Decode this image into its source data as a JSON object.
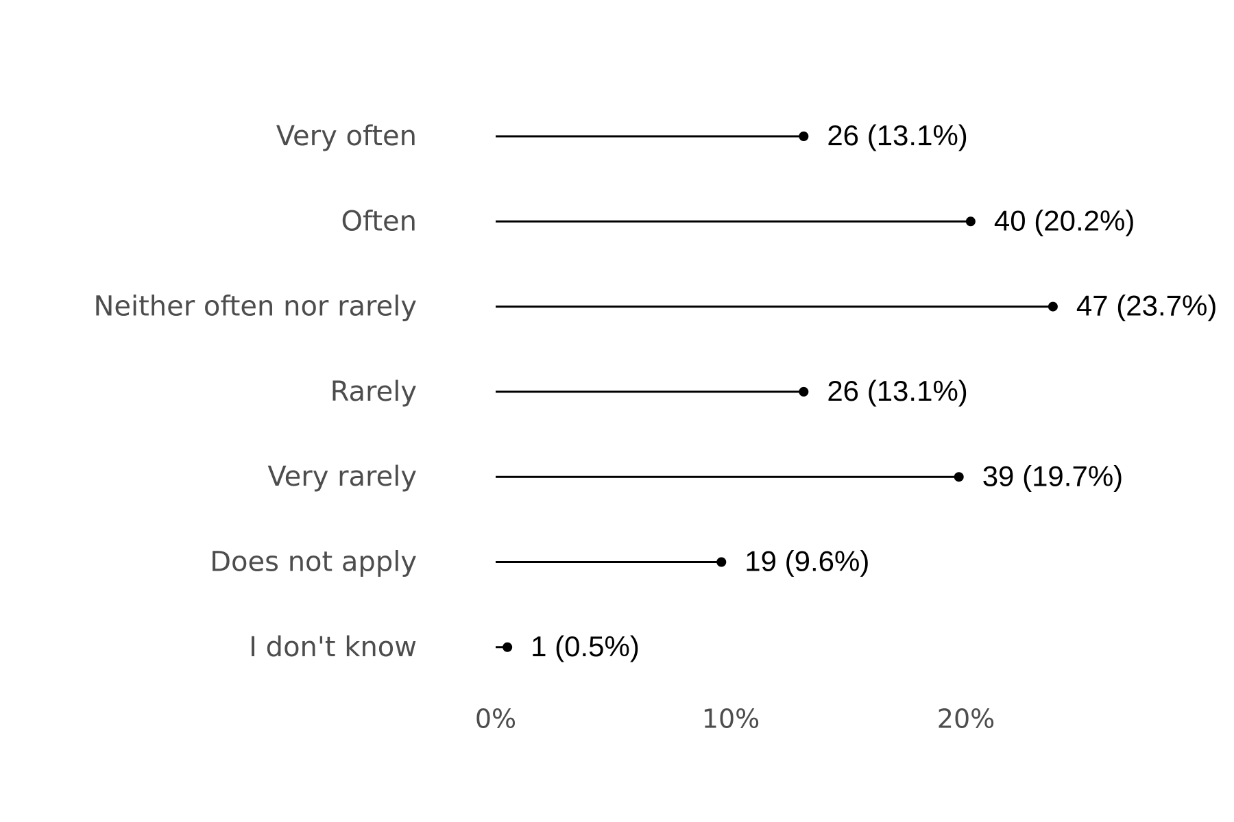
{
  "chart_data": {
    "type": "lollipop",
    "categories": [
      "Very often",
      "Often",
      "Neither often nor rarely",
      "Rarely",
      "Very rarely",
      "Does not apply",
      "I don't know"
    ],
    "values": [
      13.1,
      20.2,
      23.7,
      13.1,
      19.7,
      9.6,
      0.5
    ],
    "value_labels": [
      "26 (13.1%)",
      "40 (20.2%)",
      "47 (23.7%)",
      "26 (13.1%)",
      "39 (19.7%)",
      "19 (9.6%)",
      "1 (0.5%)"
    ],
    "color": "#000000",
    "xlim": [
      0,
      30
    ],
    "xticks": [
      {
        "value": 0,
        "label": "0%"
      },
      {
        "value": 10,
        "label": "10%"
      },
      {
        "value": 20,
        "label": "20%"
      }
    ],
    "grid": false
  }
}
